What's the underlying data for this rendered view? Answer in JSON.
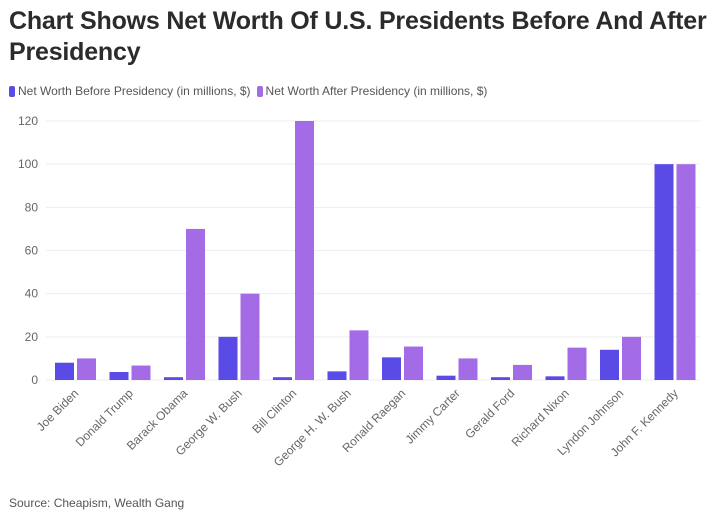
{
  "chart_data": {
    "type": "bar",
    "title": "Chart Shows Net Worth Of U.S. Presidents Before And After Presidency",
    "categories": [
      "Joe Biden",
      "Donald Trump",
      "Barack Obama",
      "George W. Bush",
      "Bill Clinton",
      "George H. W. Bush",
      "Ronald Raegan",
      "Jimmy Carter",
      "Gerald Ford",
      "Richard Nixon",
      "Lyndon Johnson",
      "John F. Kennedy"
    ],
    "series": [
      {
        "name": "Net Worth Before Presidency (in millions, $)",
        "color": "#5b4be6",
        "values": [
          8,
          3.7,
          1.3,
          20,
          1.3,
          4,
          10.5,
          2,
          1.3,
          1.7,
          14,
          100
        ]
      },
      {
        "name": "Net Worth After Presidency (in millions, $)",
        "color": "#a36ce6",
        "values": [
          10,
          6.7,
          70,
          40,
          120,
          23,
          15.5,
          10,
          7,
          15,
          20,
          100
        ]
      }
    ],
    "ylim": [
      0,
      120
    ],
    "yticks": [
      0,
      20,
      40,
      60,
      80,
      100,
      120
    ],
    "grid": true,
    "legend": "top-left",
    "xlabel": "",
    "ylabel": ""
  },
  "source": "Source: Cheapism, Wealth Gang"
}
